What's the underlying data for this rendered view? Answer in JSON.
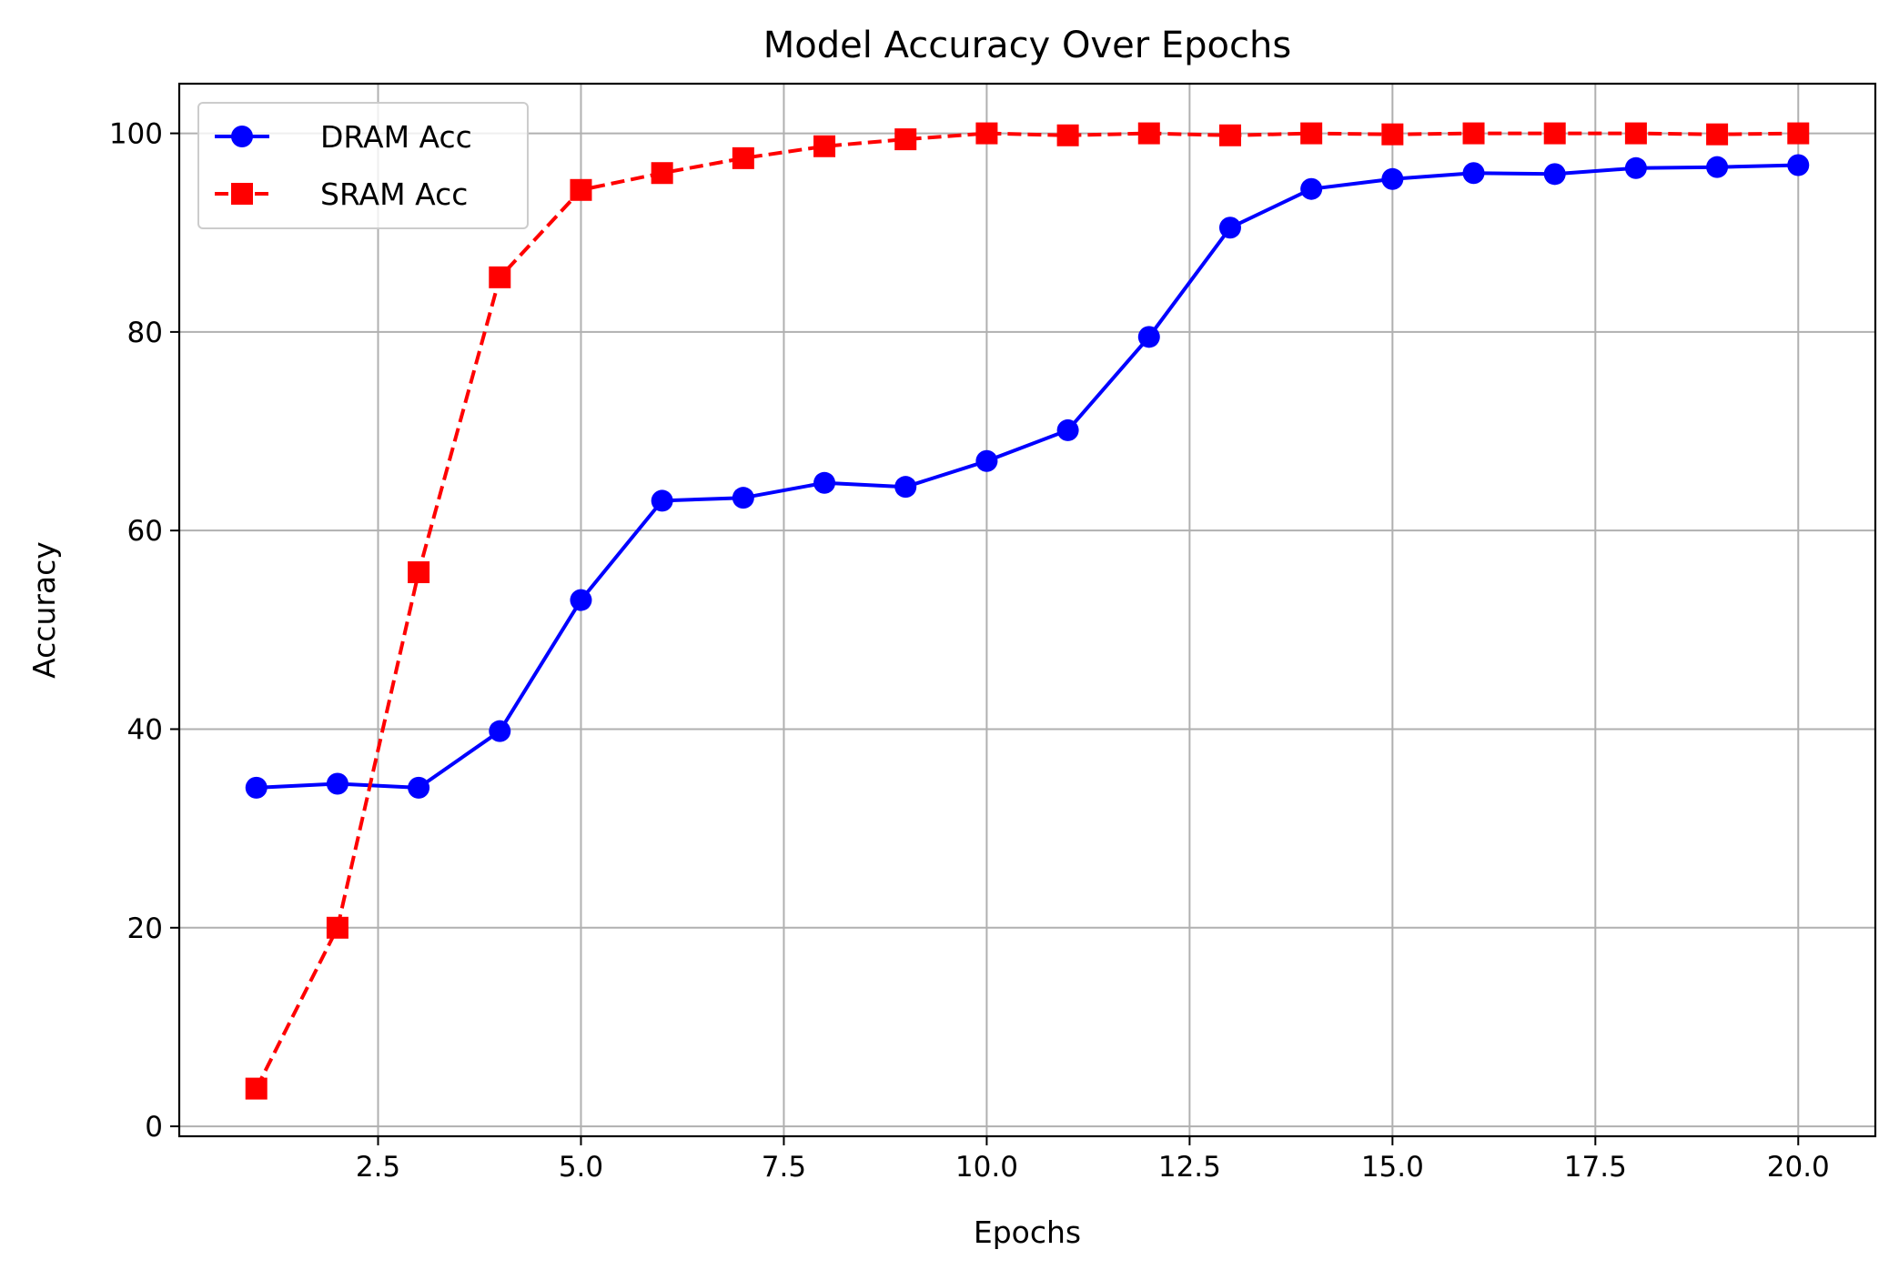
{
  "chart_data": {
    "type": "line",
    "title": "Model Accuracy Over Epochs",
    "xlabel": "Epochs",
    "ylabel": "Accuracy",
    "xlim": [
      0.05,
      20.95
    ],
    "ylim": [
      -1,
      105
    ],
    "xticks": [
      2.5,
      5.0,
      7.5,
      10.0,
      12.5,
      15.0,
      17.5,
      20.0
    ],
    "xtick_labels": [
      "2.5",
      "5.0",
      "7.5",
      "10.0",
      "12.5",
      "15.0",
      "17.5",
      "20.0"
    ],
    "yticks": [
      0,
      20,
      40,
      60,
      80,
      100
    ],
    "ytick_labels": [
      "0",
      "20",
      "40",
      "60",
      "80",
      "100"
    ],
    "grid": true,
    "legend_position": "top-left",
    "x": [
      1,
      2,
      3,
      4,
      5,
      6,
      7,
      8,
      9,
      10,
      11,
      12,
      13,
      14,
      15,
      16,
      17,
      18,
      19,
      20
    ],
    "series": [
      {
        "name": "DRAM Acc",
        "color": "#0000ff",
        "line_style": "solid",
        "marker": "circle",
        "values": [
          34.1,
          34.5,
          34.1,
          39.8,
          53.0,
          63.0,
          63.3,
          64.8,
          64.4,
          67.0,
          70.1,
          79.5,
          90.5,
          94.4,
          95.4,
          96.0,
          95.9,
          96.5,
          96.6,
          96.8
        ]
      },
      {
        "name": "SRAM Acc",
        "color": "#ff0000",
        "line_style": "dashed",
        "marker": "square",
        "values": [
          3.8,
          20.0,
          55.8,
          85.5,
          94.3,
          96.0,
          97.5,
          98.7,
          99.4,
          100.0,
          99.8,
          100.0,
          99.8,
          100.0,
          99.9,
          100.0,
          100.0,
          100.0,
          99.9,
          100.0
        ]
      }
    ]
  }
}
